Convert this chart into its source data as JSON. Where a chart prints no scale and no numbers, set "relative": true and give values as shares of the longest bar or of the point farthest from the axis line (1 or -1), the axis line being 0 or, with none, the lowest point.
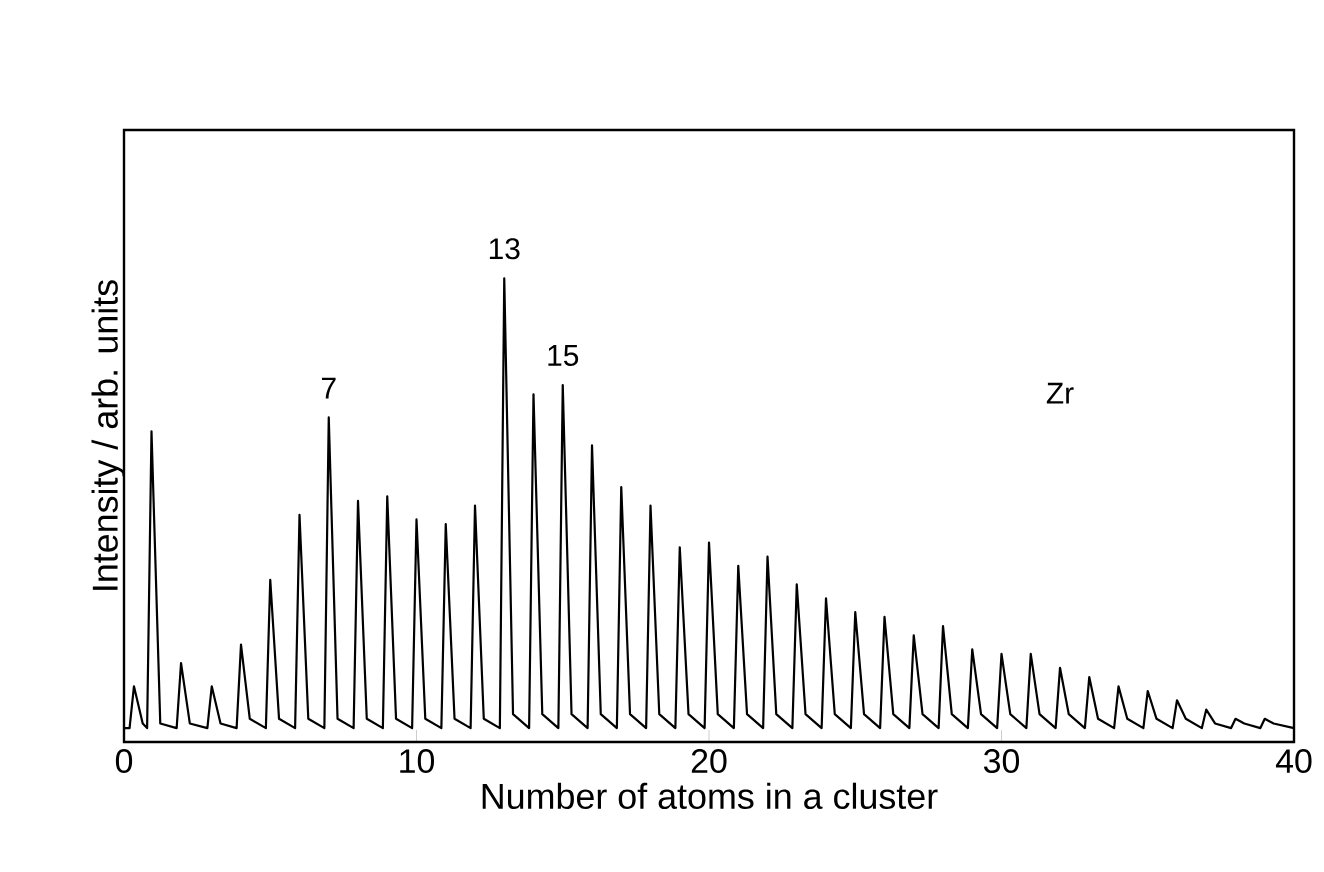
{
  "chart_data": {
    "type": "line",
    "xlabel": "Number of atoms in a cluster",
    "ylabel": "Intensity  /  arb. units",
    "color": "#000000",
    "relative": true,
    "xlim": [
      0,
      40
    ],
    "xticks": [
      0,
      10,
      20,
      30,
      40
    ],
    "x": [
      0,
      0.19,
      0.34,
      0.64,
      0.79,
      0.94,
      1.24,
      1.8,
      1.95,
      2.25,
      2.85,
      3,
      3.3,
      3.85,
      4,
      4.3,
      4.85,
      5,
      5.3,
      5.85,
      6,
      6.3,
      6.85,
      7,
      7.3,
      7.85,
      8,
      8.3,
      8.85,
      9,
      9.3,
      9.85,
      10,
      10.3,
      10.85,
      11,
      11.3,
      11.85,
      12,
      12.3,
      12.85,
      13,
      13.3,
      13.85,
      14,
      14.3,
      14.85,
      15,
      15.3,
      15.85,
      16,
      16.3,
      16.85,
      17,
      17.3,
      17.85,
      18,
      18.3,
      18.85,
      19,
      19.3,
      19.85,
      20,
      20.3,
      20.85,
      21,
      21.3,
      21.85,
      22,
      22.3,
      22.85,
      23,
      23.3,
      23.85,
      24,
      24.3,
      24.85,
      25,
      25.3,
      25.85,
      26,
      26.3,
      26.85,
      27,
      27.3,
      27.85,
      28,
      28.3,
      28.85,
      29,
      29.3,
      29.85,
      30,
      30.3,
      30.85,
      31,
      31.3,
      31.85,
      32,
      32.3,
      32.85,
      33,
      33.3,
      33.85,
      34,
      34.3,
      34.85,
      35,
      35.3,
      35.85,
      36,
      36.3,
      36.85,
      37,
      37.3,
      37.85,
      38,
      38.3,
      38.85,
      39,
      39.3,
      40
    ],
    "values": [
      0.03,
      0.03,
      0.12,
      0.04,
      0.03,
      0.67,
      0.04,
      0.03,
      0.17,
      0.04,
      0.03,
      0.12,
      0.04,
      0.03,
      0.21,
      0.05,
      0.03,
      0.35,
      0.05,
      0.03,
      0.49,
      0.05,
      0.03,
      0.7,
      0.05,
      0.03,
      0.52,
      0.05,
      0.03,
      0.53,
      0.05,
      0.03,
      0.48,
      0.05,
      0.03,
      0.47,
      0.05,
      0.03,
      0.51,
      0.05,
      0.03,
      1,
      0.06,
      0.03,
      0.75,
      0.06,
      0.03,
      0.77,
      0.06,
      0.03,
      0.64,
      0.06,
      0.03,
      0.55,
      0.06,
      0.03,
      0.51,
      0.06,
      0.03,
      0.42,
      0.06,
      0.03,
      0.43,
      0.06,
      0.03,
      0.38,
      0.06,
      0.03,
      0.4,
      0.06,
      0.03,
      0.34,
      0.06,
      0.03,
      0.31,
      0.06,
      0.03,
      0.28,
      0.06,
      0.03,
      0.27,
      0.06,
      0.03,
      0.23,
      0.06,
      0.03,
      0.25,
      0.06,
      0.03,
      0.2,
      0.06,
      0.03,
      0.19,
      0.06,
      0.03,
      0.19,
      0.06,
      0.03,
      0.16,
      0.06,
      0.03,
      0.14,
      0.05,
      0.03,
      0.12,
      0.05,
      0.03,
      0.11,
      0.05,
      0.03,
      0.09,
      0.05,
      0.03,
      0.07,
      0.04,
      0.03,
      0.05,
      0.04,
      0.03,
      0.05,
      0.04,
      0.03
    ],
    "annotations": [
      {
        "text": "7",
        "x": 7,
        "y": 0.7
      },
      {
        "text": "13",
        "x": 13,
        "y": 1
      },
      {
        "text": "15",
        "x": 15,
        "y": 0.77
      },
      "Zr"
    ]
  }
}
